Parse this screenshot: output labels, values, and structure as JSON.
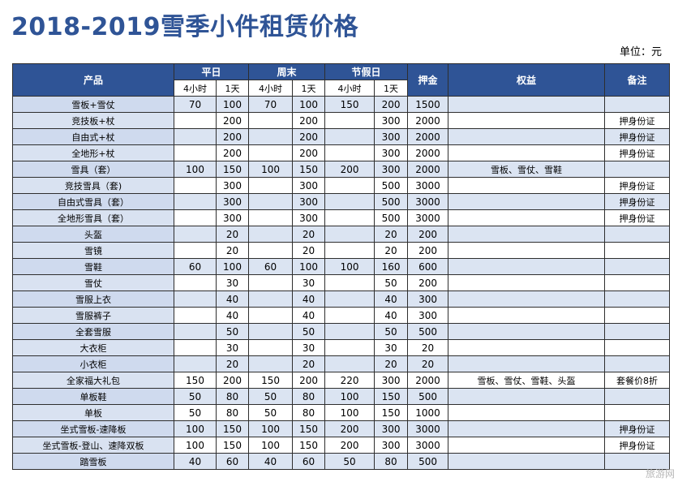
{
  "title": "2018-2019雪季小件租赁价格",
  "unit": "单位：元",
  "headers": {
    "product": "产品",
    "weekday": "平日",
    "weekend": "周末",
    "holiday": "节假日",
    "deposit": "押金",
    "rights": "权益",
    "note": "备注",
    "h4": "4小时",
    "d1": "1天"
  },
  "rows": [
    {
      "name": "雪板+雪仗",
      "wd4": "70",
      "wd1": "100",
      "we4": "70",
      "we1": "100",
      "ho4": "150",
      "ho1": "200",
      "dep": "1500",
      "rights": "",
      "note": ""
    },
    {
      "name": "竞技板+杖",
      "wd4": "",
      "wd1": "200",
      "we4": "",
      "we1": "200",
      "ho4": "",
      "ho1": "300",
      "dep": "2000",
      "rights": "",
      "note": "押身份证"
    },
    {
      "name": "自由式+杖",
      "wd4": "",
      "wd1": "200",
      "we4": "",
      "we1": "200",
      "ho4": "",
      "ho1": "300",
      "dep": "2000",
      "rights": "",
      "note": "押身份证"
    },
    {
      "name": "全地形+杖",
      "wd4": "",
      "wd1": "200",
      "we4": "",
      "we1": "200",
      "ho4": "",
      "ho1": "300",
      "dep": "2000",
      "rights": "",
      "note": "押身份证"
    },
    {
      "name": "雪具（套）",
      "wd4": "100",
      "wd1": "150",
      "we4": "100",
      "we1": "150",
      "ho4": "200",
      "ho1": "300",
      "dep": "2000",
      "rights": "雪板、雪仗、雪鞋",
      "note": ""
    },
    {
      "name": "竞技雪具（套)",
      "wd4": "",
      "wd1": "300",
      "we4": "",
      "we1": "300",
      "ho4": "",
      "ho1": "500",
      "dep": "3000",
      "rights": "",
      "note": "押身份证"
    },
    {
      "name": "自由式雪具（套）",
      "wd4": "",
      "wd1": "300",
      "we4": "",
      "we1": "300",
      "ho4": "",
      "ho1": "500",
      "dep": "3000",
      "rights": "",
      "note": "押身份证"
    },
    {
      "name": "全地形雪具（套）",
      "wd4": "",
      "wd1": "300",
      "we4": "",
      "we1": "300",
      "ho4": "",
      "ho1": "500",
      "dep": "3000",
      "rights": "",
      "note": "押身份证"
    },
    {
      "name": "头盔",
      "wd4": "",
      "wd1": "20",
      "we4": "",
      "we1": "20",
      "ho4": "",
      "ho1": "20",
      "dep": "200",
      "rights": "",
      "note": ""
    },
    {
      "name": "雪镜",
      "wd4": "",
      "wd1": "20",
      "we4": "",
      "we1": "20",
      "ho4": "",
      "ho1": "20",
      "dep": "200",
      "rights": "",
      "note": ""
    },
    {
      "name": "雪鞋",
      "wd4": "60",
      "wd1": "100",
      "we4": "60",
      "we1": "100",
      "ho4": "100",
      "ho1": "160",
      "dep": "600",
      "rights": "",
      "note": ""
    },
    {
      "name": "雪仗",
      "wd4": "",
      "wd1": "30",
      "we4": "",
      "we1": "30",
      "ho4": "",
      "ho1": "50",
      "dep": "200",
      "rights": "",
      "note": ""
    },
    {
      "name": "雪服上衣",
      "wd4": "",
      "wd1": "40",
      "we4": "",
      "we1": "40",
      "ho4": "",
      "ho1": "40",
      "dep": "300",
      "rights": "",
      "note": ""
    },
    {
      "name": "雪服裤子",
      "wd4": "",
      "wd1": "40",
      "we4": "",
      "we1": "40",
      "ho4": "",
      "ho1": "40",
      "dep": "300",
      "rights": "",
      "note": ""
    },
    {
      "name": "全套雪服",
      "wd4": "",
      "wd1": "50",
      "we4": "",
      "we1": "50",
      "ho4": "",
      "ho1": "50",
      "dep": "500",
      "rights": "",
      "note": ""
    },
    {
      "name": "大衣柜",
      "wd4": "",
      "wd1": "30",
      "we4": "",
      "we1": "30",
      "ho4": "",
      "ho1": "30",
      "dep": "20",
      "rights": "",
      "note": ""
    },
    {
      "name": "小衣柜",
      "wd4": "",
      "wd1": "20",
      "we4": "",
      "we1": "20",
      "ho4": "",
      "ho1": "20",
      "dep": "20",
      "rights": "",
      "note": ""
    },
    {
      "name": "全家福大礼包",
      "wd4": "150",
      "wd1": "200",
      "we4": "150",
      "we1": "200",
      "ho4": "220",
      "ho1": "300",
      "dep": "2000",
      "rights": "雪板、雪仗、雪鞋、头盔",
      "note": "套餐价8折"
    },
    {
      "name": "单板鞋",
      "wd4": "50",
      "wd1": "80",
      "we4": "50",
      "we1": "80",
      "ho4": "100",
      "ho1": "150",
      "dep": "500",
      "rights": "",
      "note": ""
    },
    {
      "name": "单板",
      "wd4": "50",
      "wd1": "80",
      "we4": "50",
      "we1": "80",
      "ho4": "100",
      "ho1": "150",
      "dep": "1000",
      "rights": "",
      "note": ""
    },
    {
      "name": "坐式雪板-速降板",
      "wd4": "100",
      "wd1": "150",
      "we4": "100",
      "we1": "150",
      "ho4": "200",
      "ho1": "300",
      "dep": "3000",
      "rights": "",
      "note": "押身份证"
    },
    {
      "name": "坐式雪板-登山、速降双板",
      "wd4": "100",
      "wd1": "150",
      "we4": "100",
      "we1": "150",
      "ho4": "200",
      "ho1": "300",
      "dep": "3000",
      "rights": "",
      "note": "押身份证"
    },
    {
      "name": "踏雪板",
      "wd4": "40",
      "wd1": "60",
      "we4": "40",
      "we1": "60",
      "ho4": "50",
      "ho1": "80",
      "dep": "500",
      "rights": "",
      "note": ""
    }
  ],
  "watermark": "旅游网"
}
